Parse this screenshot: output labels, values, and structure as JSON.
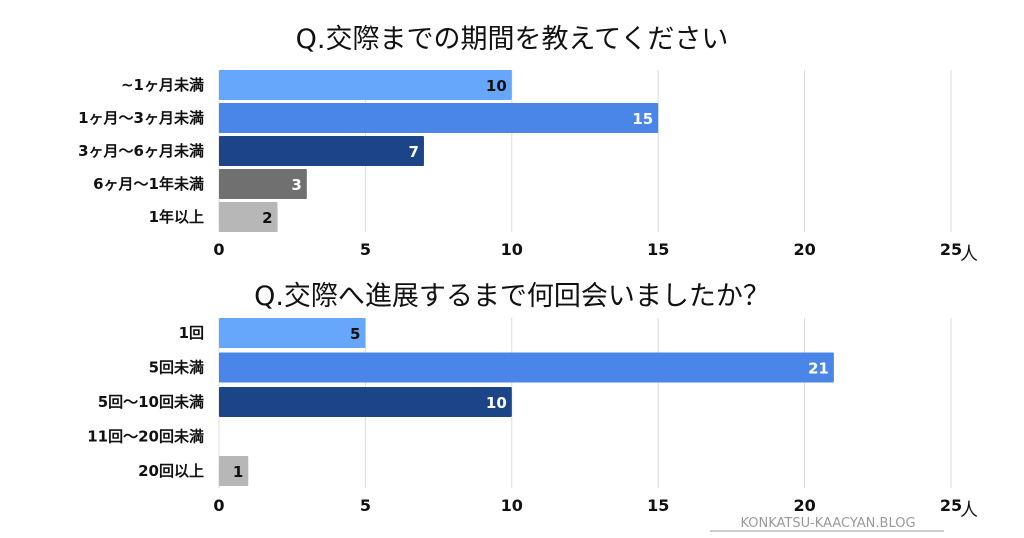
{
  "chart_data": [
    {
      "type": "bar",
      "orientation": "horizontal",
      "title": "Q.交際までの期間を教えてください",
      "categories": [
        "~1ヶ月未満",
        "1ヶ月～3ヶ月未満",
        "3ヶ月～6ヶ月未満",
        "6ヶ月～1年未満",
        "1年以上"
      ],
      "values": [
        10,
        15,
        7,
        3,
        2
      ],
      "colors": [
        "#66a6fb",
        "#4a86e8",
        "#1c4587",
        "#707070",
        "#b7b7b7"
      ],
      "label_colors": [
        "#111111",
        "#ffffff",
        "#ffffff",
        "#ffffff",
        "#111111"
      ],
      "xticks": [
        0,
        5,
        10,
        15,
        20,
        25
      ],
      "xlim": [
        0,
        25
      ],
      "unit": "人",
      "grid": true
    },
    {
      "type": "bar",
      "orientation": "horizontal",
      "title": "Q.交際へ進展するまで何回会いましたか？",
      "categories": [
        "1回",
        "5回未満",
        "5回～10回未満",
        "11回～20回未満",
        "20回以上"
      ],
      "values": [
        5,
        21,
        10,
        0,
        1
      ],
      "colors": [
        "#66a6fb",
        "#4a86e8",
        "#1c4587",
        "#707070",
        "#b7b7b7"
      ],
      "label_colors": [
        "#111111",
        "#ffffff",
        "#ffffff",
        "#ffffff",
        "#111111"
      ],
      "xticks": [
        0,
        5,
        10,
        15,
        20,
        25
      ],
      "xlim": [
        0,
        25
      ],
      "unit": "人",
      "grid": true
    }
  ],
  "watermark": "KONKATSU-KAACYAN.BLOG"
}
